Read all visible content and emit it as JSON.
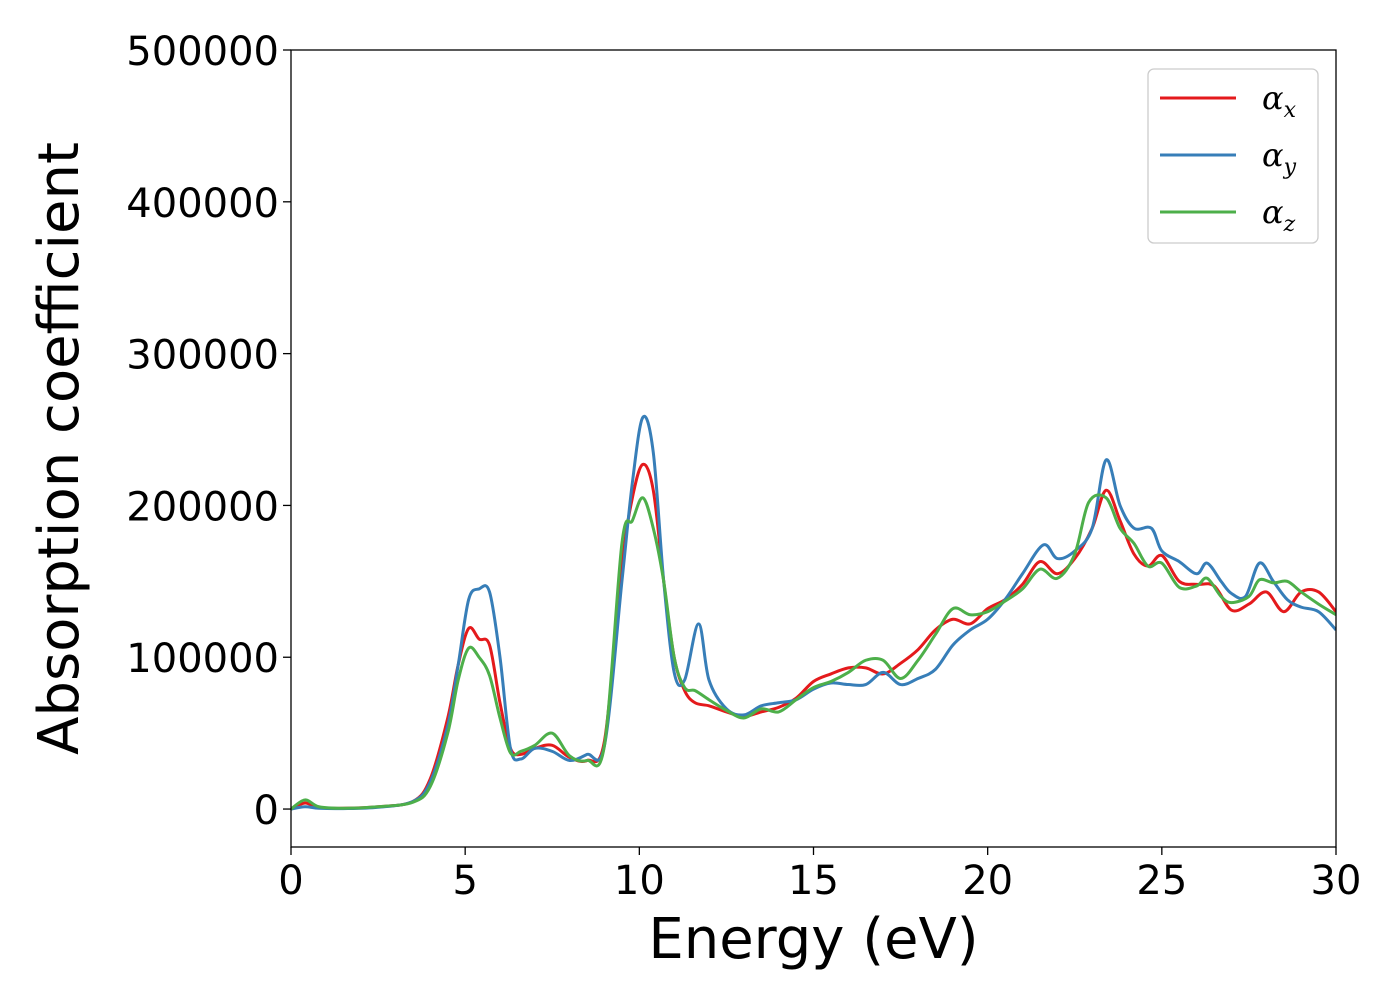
{
  "chart_data": {
    "type": "line",
    "xlabel": "Energy (eV)",
    "ylabel": "Absorption coefficient",
    "xlim": [
      0,
      30
    ],
    "ylim": [
      -25000,
      500000
    ],
    "xticks": [
      0,
      5,
      10,
      15,
      20,
      25,
      30
    ],
    "yticks": [
      0,
      100000,
      200000,
      300000,
      400000,
      500000
    ],
    "grid": false,
    "legend_position": "top-right",
    "series": [
      {
        "name": "αx",
        "symbol": "α",
        "subscript": "x",
        "color": "#e41a1c",
        "x": [
          0,
          0.4,
          0.8,
          1.5,
          2.5,
          3.5,
          4.0,
          4.5,
          4.8,
          5.1,
          5.4,
          5.7,
          6.0,
          6.3,
          6.6,
          7.0,
          7.5,
          8.0,
          8.5,
          9.0,
          9.5,
          9.8,
          10.1,
          10.4,
          10.7,
          11.0,
          11.3,
          11.6,
          12.0,
          12.5,
          13.0,
          13.5,
          14.0,
          14.5,
          15.0,
          15.5,
          16.0,
          16.5,
          17.0,
          17.5,
          18.0,
          18.5,
          19.0,
          19.5,
          20.0,
          20.5,
          21.0,
          21.5,
          22.0,
          22.5,
          23.0,
          23.4,
          23.8,
          24.2,
          24.6,
          25.0,
          25.5,
          26.0,
          26.5,
          27.0,
          27.5,
          28.0,
          28.5,
          29.0,
          29.5,
          30.0
        ],
        "y": [
          0,
          4000,
          1000,
          500,
          1500,
          5000,
          20000,
          60000,
          95000,
          119000,
          112000,
          108000,
          70000,
          40000,
          36000,
          40000,
          42000,
          34000,
          32000,
          45000,
          160000,
          205000,
          227000,
          210000,
          150000,
          100000,
          78000,
          70000,
          68000,
          64000,
          61000,
          64000,
          67000,
          73000,
          84000,
          89000,
          93000,
          93000,
          89000,
          96000,
          105000,
          118000,
          125000,
          122000,
          132000,
          138000,
          148000,
          163000,
          155000,
          165000,
          185000,
          210000,
          190000,
          168000,
          160000,
          167000,
          150000,
          148000,
          147000,
          131000,
          135000,
          143000,
          130000,
          143000,
          143000,
          130000
        ]
      },
      {
        "name": "αy",
        "symbol": "α",
        "subscript": "y",
        "color": "#377eb8",
        "x": [
          0,
          0.4,
          0.8,
          1.5,
          2.5,
          3.5,
          4.0,
          4.5,
          4.8,
          5.1,
          5.4,
          5.7,
          6.0,
          6.3,
          6.6,
          7.0,
          7.5,
          8.0,
          8.5,
          9.0,
          9.5,
          9.8,
          10.1,
          10.4,
          10.7,
          11.0,
          11.3,
          11.7,
          12.0,
          12.5,
          13.0,
          13.5,
          14.0,
          14.5,
          15.0,
          15.5,
          16.0,
          16.5,
          17.0,
          17.5,
          18.0,
          18.5,
          19.0,
          19.5,
          20.0,
          20.5,
          21.0,
          21.6,
          22.0,
          22.5,
          23.0,
          23.4,
          23.8,
          24.2,
          24.7,
          25.0,
          25.5,
          26.0,
          26.3,
          26.7,
          27.0,
          27.4,
          27.8,
          28.2,
          28.6,
          29.0,
          29.5,
          30.0
        ],
        "y": [
          0,
          1500,
          500,
          300,
          1200,
          5000,
          18000,
          55000,
          95000,
          138000,
          145000,
          143000,
          100000,
          40000,
          33000,
          40000,
          38000,
          32000,
          36000,
          42000,
          150000,
          215000,
          258000,
          235000,
          150000,
          90000,
          85000,
          122000,
          85000,
          66000,
          62000,
          68000,
          70000,
          72000,
          79000,
          83000,
          82000,
          82000,
          90000,
          82000,
          86000,
          92000,
          108000,
          118000,
          125000,
          138000,
          155000,
          174000,
          165000,
          170000,
          185000,
          230000,
          200000,
          185000,
          185000,
          170000,
          163000,
          155000,
          162000,
          150000,
          142000,
          140000,
          162000,
          150000,
          138000,
          133000,
          130000,
          118000
        ]
      },
      {
        "name": "αz",
        "symbol": "α",
        "subscript": "z",
        "color": "#4daf4a",
        "x": [
          0,
          0.4,
          0.8,
          1.5,
          2.5,
          3.5,
          4.0,
          4.5,
          4.8,
          5.1,
          5.4,
          5.7,
          6.0,
          6.3,
          6.6,
          7.0,
          7.5,
          8.0,
          8.5,
          9.0,
          9.5,
          9.8,
          10.1,
          10.4,
          10.7,
          11.0,
          11.3,
          11.6,
          12.0,
          12.5,
          13.0,
          13.5,
          14.0,
          14.5,
          15.0,
          15.5,
          16.0,
          16.5,
          17.0,
          17.5,
          18.0,
          18.5,
          19.0,
          19.5,
          20.0,
          20.5,
          21.0,
          21.5,
          22.0,
          22.5,
          22.9,
          23.4,
          23.8,
          24.2,
          24.6,
          25.0,
          25.5,
          26.0,
          26.3,
          26.7,
          27.0,
          27.5,
          27.8,
          28.2,
          28.6,
          29.0,
          29.5,
          30.0
        ],
        "y": [
          0,
          6000,
          1500,
          500,
          1500,
          4500,
          15000,
          50000,
          85000,
          106000,
          100000,
          88000,
          60000,
          37000,
          38000,
          42000,
          50000,
          35000,
          32000,
          42000,
          175000,
          190000,
          205000,
          185000,
          150000,
          100000,
          80000,
          78000,
          72000,
          65000,
          60000,
          66000,
          64000,
          72000,
          80000,
          84000,
          90000,
          98000,
          98000,
          86000,
          98000,
          115000,
          132000,
          128000,
          130000,
          137000,
          145000,
          158000,
          152000,
          168000,
          202000,
          205000,
          185000,
          175000,
          160000,
          162000,
          146000,
          147000,
          152000,
          140000,
          136000,
          140000,
          151000,
          149000,
          150000,
          143000,
          135000,
          128000
        ]
      }
    ]
  }
}
